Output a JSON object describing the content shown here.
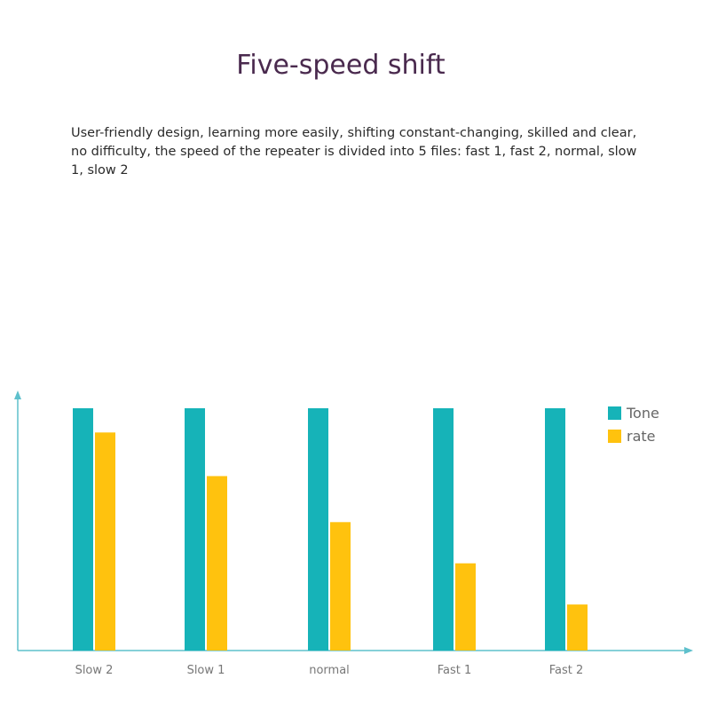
{
  "title": "Five-speed shift",
  "description": "User-friendly design, learning more easily, shifting constant-changing, skilled and clear, no difficulty, the speed of the repeater is divided into 5 files: fast 1, fast 2, normal, slow 1, slow 2",
  "colors": {
    "tone": "#16b3b8",
    "rate": "#ffc20e",
    "axis": "#5ec0cc",
    "tick_text": "#777777",
    "legend_text": "#666666"
  },
  "chart_data": {
    "type": "bar",
    "title": "",
    "xlabel": "",
    "ylabel": "",
    "categories": [
      "Slow 2",
      "Slow 1",
      "normal",
      "Fast 1",
      "Fast 2"
    ],
    "series": [
      {
        "name": "Tone",
        "values": [
          100,
          100,
          100,
          100,
          100
        ]
      },
      {
        "name": "rate",
        "values": [
          90,
          72,
          53,
          36,
          19
        ]
      }
    ],
    "ylim": [
      0,
      100
    ],
    "grid": false,
    "legend": "top-right"
  }
}
